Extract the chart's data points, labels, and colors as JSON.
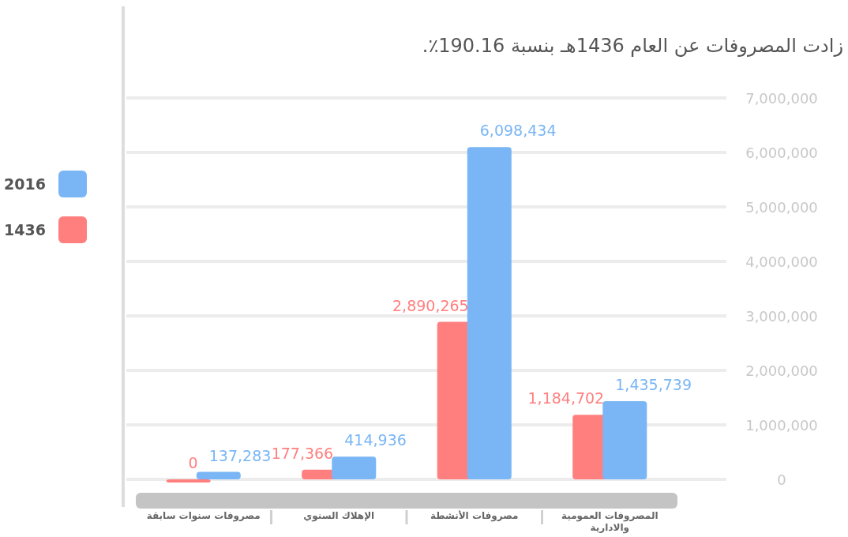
{
  "chart_data": {
    "type": "bar",
    "title": "زادت المصروفات عن العام 1436هـ بنسبة 190.16٪.",
    "categories": [
      "مصروفات سنوات سابقة",
      "الإهلاك السنوي",
      "مصروفات الأنشطة",
      "المصروفات العمومية والادارية"
    ],
    "series": [
      {
        "name": "1436",
        "color": "#ff7f7f",
        "values": [
          0,
          177366,
          2890265,
          1184702
        ],
        "value_labels": [
          "0",
          "177,366",
          "2,890,265",
          "1,184,702"
        ]
      },
      {
        "name": "2016",
        "color": "#7ab6f5",
        "values": [
          137283,
          414936,
          6098434,
          1435739
        ],
        "value_labels": [
          "137,283",
          "414,936",
          "6,098,434",
          "1,435,739"
        ]
      }
    ],
    "ylim": [
      0,
      7000000
    ],
    "yticks": [
      0,
      {
        "value": 1000000,
        "label": "1,000,000"
      },
      {
        "value": 2000000,
        "label": "2,000,000"
      },
      {
        "value": 3000000,
        "label": "3,000,000"
      },
      {
        "value": 4000000,
        "label": "4,000,000"
      },
      {
        "value": 5000000,
        "label": "5,000,000"
      },
      {
        "value": 6000000,
        "label": "6,000,000"
      },
      {
        "value": 7000000,
        "label": "7,000,000"
      }
    ],
    "grid": "y",
    "legend": "left"
  }
}
